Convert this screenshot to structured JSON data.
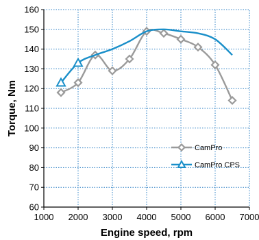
{
  "chart_data": {
    "type": "line",
    "xlabel": "Engine speed, rpm",
    "ylabel": "Torque, Nm",
    "xlim": [
      1000,
      7000
    ],
    "ylim": [
      60,
      160
    ],
    "xticks": [
      1000,
      2000,
      3000,
      4000,
      5000,
      6000,
      7000
    ],
    "yticks": [
      60,
      70,
      80,
      90,
      100,
      110,
      120,
      130,
      140,
      150,
      160
    ],
    "grid": true,
    "legend_position": "right",
    "series": [
      {
        "name": "CamPro",
        "color": "#9a9a9a",
        "marker": "diamond",
        "x": [
          1500,
          2000,
          2500,
          3000,
          3500,
          4000,
          4500,
          5000,
          5500,
          6000,
          6500
        ],
        "y": [
          118,
          123,
          137,
          129,
          135,
          149,
          148,
          145,
          141,
          132,
          114
        ]
      },
      {
        "name": "CamPro CPS",
        "color": "#1a8fc9",
        "marker": "triangle",
        "marker_x": [
          1500,
          2000
        ],
        "x": [
          1500,
          2000,
          2500,
          3000,
          3500,
          4000,
          4500,
          5000,
          5500,
          6000,
          6500
        ],
        "y": [
          123,
          133,
          137,
          140,
          144,
          149,
          150,
          149,
          148,
          145,
          137
        ]
      }
    ]
  }
}
